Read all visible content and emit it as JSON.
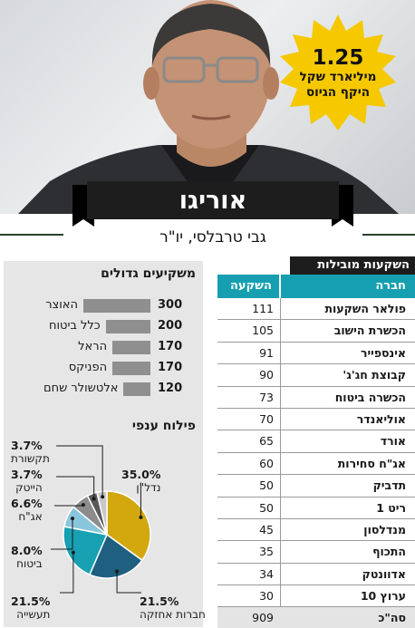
{
  "colors": {
    "banner": "#1d1d1d",
    "table_header": "#159fb1",
    "burst": "#f5c800",
    "bar": "#8f8f8f",
    "panel_bg": "#e6e6e6"
  },
  "header": {
    "title": "אוריגו",
    "subtitle": "גבי טרבלסי, יו\"ר"
  },
  "burst": {
    "amount": "1.25",
    "line1": "מיליארד שקל",
    "line2": "היקף הגיוס"
  },
  "investments": {
    "title": "השקעות מובילות",
    "col_company": "חברה",
    "col_investment": "השקעה",
    "rows": [
      {
        "company": "פולאר השקעות",
        "value": "111"
      },
      {
        "company": "הכשרת הישוב",
        "value": "105"
      },
      {
        "company": "אינספייר",
        "value": "91"
      },
      {
        "company": "קבוצת חג'ג'",
        "value": "90"
      },
      {
        "company": "הכשרה ביטוח",
        "value": "73"
      },
      {
        "company": "אוליאנדר",
        "value": "70"
      },
      {
        "company": "אורד",
        "value": "65"
      },
      {
        "company": "אג\"ח סחירות",
        "value": "60"
      },
      {
        "company": "תדביק",
        "value": "50"
      },
      {
        "company": "ריט 1",
        "value": "50"
      },
      {
        "company": "מנדלסון",
        "value": "45"
      },
      {
        "company": "התכוף",
        "value": "35"
      },
      {
        "company": "אדוונטק",
        "value": "34"
      },
      {
        "company": "ערוץ 10",
        "value": "30"
      },
      {
        "company": "סה\"כ",
        "value": "909"
      }
    ]
  },
  "chart_data": [
    {
      "type": "bar",
      "title": "משקיעים גדולים",
      "categories": [
        "האוצר",
        "כלל ביטוח",
        "הראל",
        "הפניקס",
        "אלטשולר שחם"
      ],
      "values": [
        300,
        200,
        170,
        170,
        120
      ]
    },
    {
      "type": "pie",
      "title": "פילוח ענפי",
      "categories": [
        "נדל\"ן",
        "חברות אחזקה",
        "תעשייה",
        "ביטוח",
        "אג\"ח",
        "הייטק",
        "תקשורת"
      ],
      "values": [
        35.0,
        21.5,
        21.5,
        8.0,
        6.6,
        3.7,
        3.7
      ],
      "labels": [
        "35.0%",
        "21.5%",
        "21.5%",
        "8.0%",
        "6.6%",
        "3.7%",
        "3.7%"
      ],
      "colors": [
        "#d3a70e",
        "#1f5f7f",
        "#18a0b3",
        "#89c6dc",
        "#8c8c8c",
        "#5a5a5a",
        "#c8c8c8"
      ]
    }
  ]
}
